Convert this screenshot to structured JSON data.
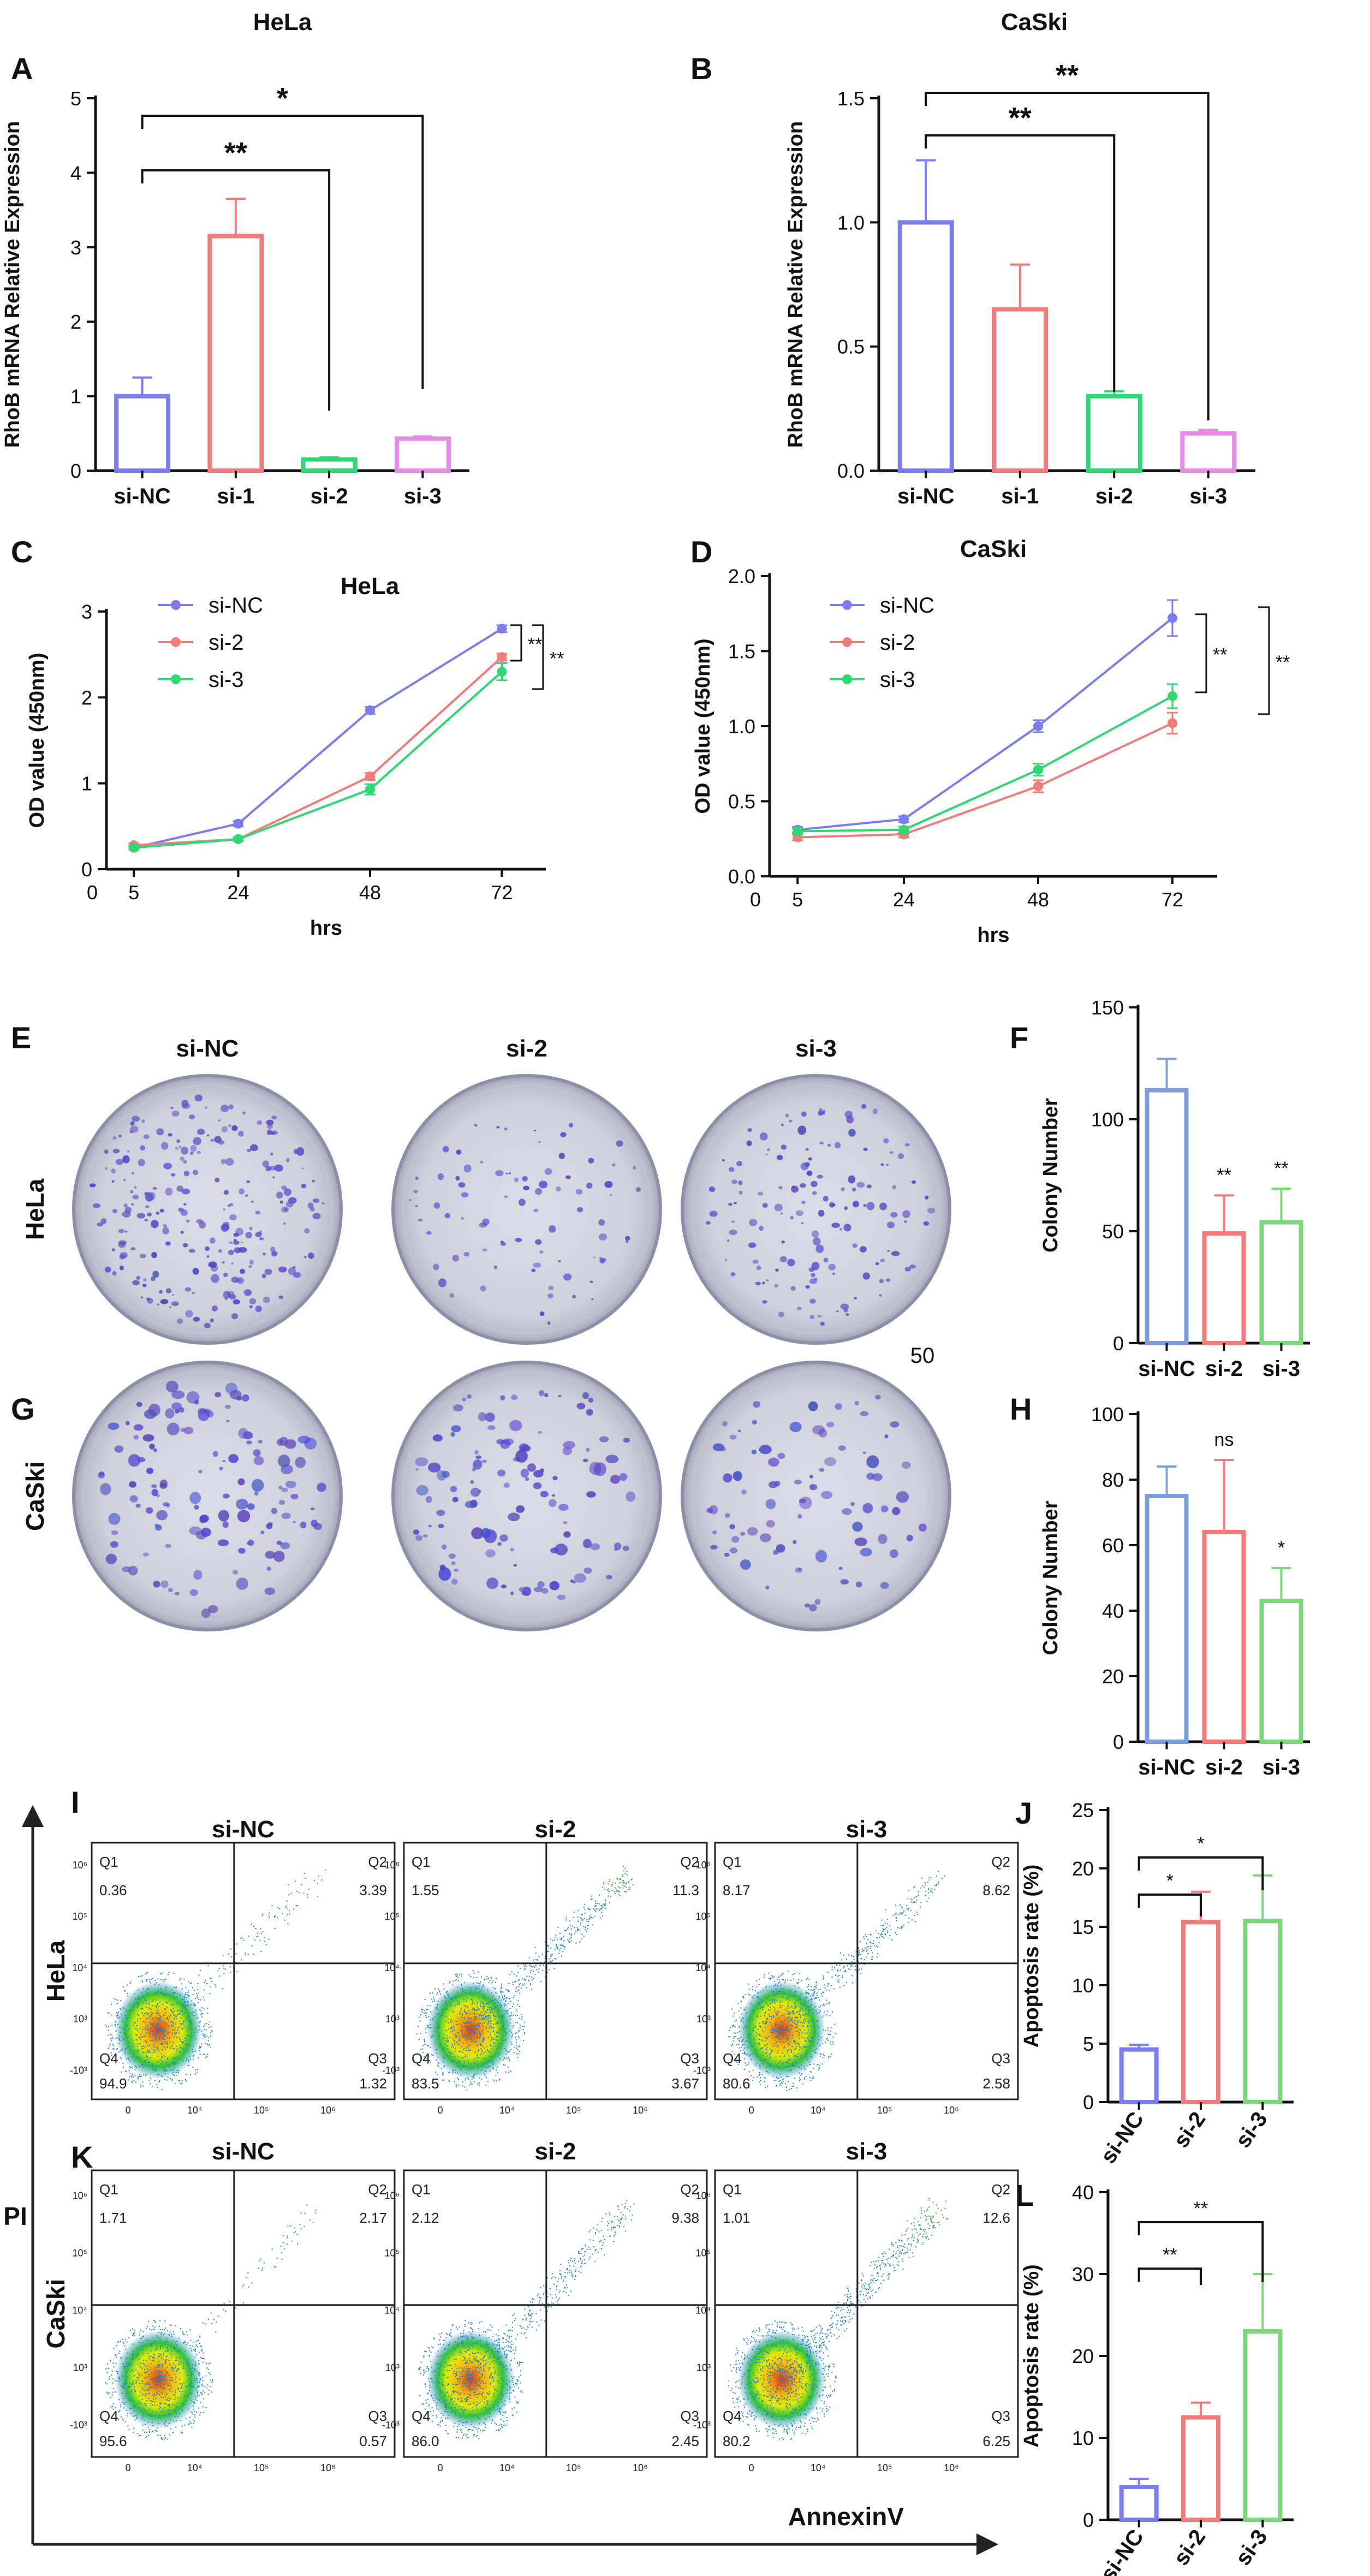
{
  "panels": {
    "A": "A",
    "B": "B",
    "C": "C",
    "D": "D",
    "E": "E",
    "F": "F",
    "G": "G",
    "H": "H",
    "I": "I",
    "J": "J",
    "K": "K",
    "L": "L"
  },
  "chart_data": [
    {
      "id": "A",
      "type": "bar",
      "title": "HeLa",
      "ylabel": "RhoB mRNA Relative Expression",
      "xlabel": "",
      "categories": [
        "si-NC",
        "si-1",
        "si-2",
        "si-3"
      ],
      "values": [
        1.0,
        3.15,
        0.15,
        0.43
      ],
      "errors": [
        0.25,
        0.5,
        0.03,
        0.03
      ],
      "colors": [
        "#7b7bf2",
        "#f27b7b",
        "#2ed873",
        "#e88ae8"
      ],
      "ylim": [
        0,
        5
      ],
      "yticks": [
        "0",
        "1",
        "2",
        "3",
        "4",
        "5"
      ],
      "annotations": [
        {
          "from": "si-NC",
          "to": "si-2",
          "label": "**"
        },
        {
          "from": "si-NC",
          "to": "si-3",
          "label": "*"
        }
      ]
    },
    {
      "id": "B",
      "type": "bar",
      "title": "CaSki",
      "ylabel": "RhoB mRNA Relative Expression",
      "xlabel": "",
      "categories": [
        "si-NC",
        "si-1",
        "si-2",
        "si-3"
      ],
      "values": [
        1.0,
        0.65,
        0.3,
        0.15
      ],
      "errors": [
        0.25,
        0.18,
        0.02,
        0.015
      ],
      "colors": [
        "#7b7bf2",
        "#f27b7b",
        "#2ed873",
        "#e88ae8"
      ],
      "ylim": [
        0,
        1.5
      ],
      "yticks": [
        "0.0",
        "0.5",
        "1.0",
        "1.5"
      ],
      "annotations": [
        {
          "from": "si-NC",
          "to": "si-2",
          "label": "**"
        },
        {
          "from": "si-NC",
          "to": "si-3",
          "label": "**"
        }
      ]
    },
    {
      "id": "C",
      "type": "line",
      "title": "HeLa",
      "ylabel": "OD value (450nm)",
      "xlabel": "hrs",
      "x": [
        5,
        24,
        48,
        72
      ],
      "xticks": [
        "0",
        "5",
        "24",
        "48",
        "72"
      ],
      "ylim": [
        0,
        3
      ],
      "yticks": [
        "0",
        "1",
        "2",
        "3"
      ],
      "series": [
        {
          "name": "si-NC",
          "color": "#7b7bf2",
          "values": [
            0.25,
            0.53,
            1.85,
            2.8
          ],
          "errors": [
            0.02,
            0.03,
            0.04,
            0.04
          ]
        },
        {
          "name": "si-2",
          "color": "#f27b7b",
          "values": [
            0.28,
            0.35,
            1.08,
            2.47
          ],
          "errors": [
            0.02,
            0.02,
            0.04,
            0.04
          ]
        },
        {
          "name": "si-3",
          "color": "#2ed873",
          "values": [
            0.25,
            0.35,
            0.93,
            2.3
          ],
          "errors": [
            0.02,
            0.02,
            0.06,
            0.1
          ]
        }
      ],
      "annotations": [
        "**",
        "**"
      ]
    },
    {
      "id": "D",
      "type": "line",
      "title": "CaSki",
      "ylabel": "OD value (450nm)",
      "xlabel": "hrs",
      "x": [
        5,
        24,
        48,
        72
      ],
      "xticks": [
        "0",
        "5",
        "24",
        "48",
        "72"
      ],
      "ylim": [
        0,
        2.0
      ],
      "yticks": [
        "0.0",
        "0.5",
        "1.0",
        "1.5",
        "2.0"
      ],
      "series": [
        {
          "name": "si-NC",
          "color": "#7b7bf2",
          "values": [
            0.31,
            0.38,
            1.0,
            1.72
          ],
          "errors": [
            0.02,
            0.02,
            0.04,
            0.12
          ]
        },
        {
          "name": "si-2",
          "color": "#f27b7b",
          "values": [
            0.26,
            0.28,
            0.6,
            1.02
          ],
          "errors": [
            0.02,
            0.02,
            0.04,
            0.07
          ]
        },
        {
          "name": "si-3",
          "color": "#2ed873",
          "values": [
            0.3,
            0.31,
            0.71,
            1.2
          ],
          "errors": [
            0.02,
            0.02,
            0.04,
            0.08
          ]
        }
      ],
      "annotations": [
        "**",
        "**"
      ]
    },
    {
      "id": "F",
      "type": "bar",
      "title": "",
      "ylabel": "Colony Number",
      "xlabel": "",
      "categories": [
        "si-NC",
        "si-2",
        "si-3"
      ],
      "values": [
        113,
        49,
        54
      ],
      "errors": [
        14,
        17,
        15
      ],
      "colors": [
        "#7b9ee0",
        "#f27b7b",
        "#7bd87b"
      ],
      "ylim": [
        0,
        150
      ],
      "yticks": [
        "0",
        "50",
        "100",
        "150"
      ],
      "bar_labels": [
        "",
        "**",
        "**"
      ]
    },
    {
      "id": "H",
      "type": "bar",
      "title": "",
      "ylabel": "Colony Number",
      "xlabel": "",
      "categories": [
        "si-NC",
        "si-2",
        "si-3"
      ],
      "values": [
        75,
        64,
        43
      ],
      "errors": [
        9,
        22,
        10
      ],
      "colors": [
        "#7b9ee0",
        "#f27b7b",
        "#7bd87b"
      ],
      "ylim": [
        0,
        100
      ],
      "yticks": [
        "0",
        "20",
        "40",
        "60",
        "80",
        "100"
      ],
      "bar_labels": [
        "",
        "ns",
        "*"
      ]
    },
    {
      "id": "J",
      "type": "bar",
      "title": "",
      "ylabel": "Apoptosis rate (%)",
      "xlabel": "",
      "categories": [
        "si-NC",
        "si-2",
        "si-3"
      ],
      "values": [
        4.5,
        15.4,
        15.5
      ],
      "errors": [
        0.4,
        2.6,
        3.9
      ],
      "colors": [
        "#7b7bf2",
        "#f27b7b",
        "#7bd87b"
      ],
      "ylim": [
        0,
        25
      ],
      "yticks": [
        "0",
        "5",
        "10",
        "15",
        "20",
        "25"
      ],
      "annotations": [
        {
          "from": "si-NC",
          "to": "si-2",
          "label": "*"
        },
        {
          "from": "si-NC",
          "to": "si-3",
          "label": "*"
        }
      ]
    },
    {
      "id": "L",
      "type": "bar",
      "title": "",
      "ylabel": "Apoptosis rate (%)",
      "xlabel": "",
      "categories": [
        "si-NC",
        "si-2",
        "si-3"
      ],
      "values": [
        4.0,
        12.5,
        23.0
      ],
      "errors": [
        1.0,
        1.8,
        7.0
      ],
      "colors": [
        "#7b7bf2",
        "#f27b7b",
        "#7bd87b"
      ],
      "ylim": [
        0,
        40
      ],
      "yticks": [
        "0",
        "10",
        "20",
        "30",
        "40"
      ],
      "annotations": [
        {
          "from": "si-NC",
          "to": "si-2",
          "label": "**"
        },
        {
          "from": "si-NC",
          "to": "si-3",
          "label": "**"
        }
      ]
    }
  ],
  "colony": {
    "row_labels": {
      "E": "HeLa",
      "G": "CaSki"
    },
    "plate_labels": [
      "si-NC",
      "si-2",
      "si-3"
    ],
    "stray_text": "50",
    "density": {
      "E": [
        1.0,
        0.35,
        0.6
      ],
      "G": [
        0.55,
        0.5,
        0.35
      ]
    }
  },
  "flow": {
    "y_axis_label": "PI",
    "x_axis_label": "AnnexinV",
    "row_labels": {
      "I": "HeLa",
      "K": "CaSki"
    },
    "plate_labels": [
      "si-NC",
      "si-2",
      "si-3"
    ],
    "quadrant_names": [
      "Q1",
      "Q2",
      "Q3",
      "Q4"
    ],
    "tick_labels": [
      "-10³",
      "0",
      "10³",
      "10⁴",
      "10⁵",
      "10⁶",
      "10⁷"
    ],
    "plots": {
      "I": [
        {
          "Q1": "0.36",
          "Q2": "3.39",
          "Q3": "1.32",
          "Q4": "94.9"
        },
        {
          "Q1": "1.55",
          "Q2": "11.3",
          "Q3": "3.67",
          "Q4": "83.5"
        },
        {
          "Q1": "8.17",
          "Q2": "8.62",
          "Q3": "2.58",
          "Q4": "80.6"
        }
      ],
      "K": [
        {
          "Q1": "1.71",
          "Q2": "2.17",
          "Q3": "0.57",
          "Q4": "95.6"
        },
        {
          "Q1": "2.12",
          "Q2": "9.38",
          "Q3": "2.45",
          "Q4": "86.0"
        },
        {
          "Q1": "1.01",
          "Q2": "12.6",
          "Q3": "6.25",
          "Q4": "80.2"
        }
      ]
    }
  }
}
